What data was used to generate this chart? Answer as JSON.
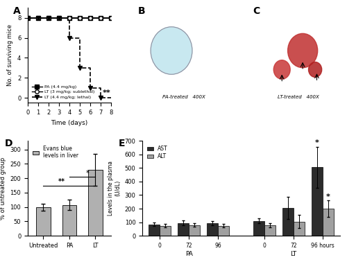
{
  "panel_A": {
    "title": "A",
    "xlabel": "Time (days)",
    "ylabel": "No. of surviving mice",
    "xlim": [
      0,
      8
    ],
    "ylim": [
      -0.5,
      9
    ],
    "yticks": [
      0,
      2,
      4,
      6,
      8
    ],
    "xticks": [
      0,
      1,
      2,
      3,
      4,
      5,
      6,
      7,
      8
    ],
    "pa_x": [
      0,
      1,
      2,
      3,
      4,
      5,
      6,
      7,
      8
    ],
    "pa_y": [
      8,
      8,
      8,
      8,
      8,
      8,
      8,
      8,
      8
    ],
    "lt_sublethal_x": [
      0,
      1,
      2,
      3,
      4,
      5,
      6,
      7,
      8
    ],
    "lt_sublethal_y": [
      8,
      8,
      8,
      8,
      8,
      8,
      8,
      8,
      8
    ],
    "lt_lethal_x": [
      0,
      1,
      2,
      3,
      4,
      4,
      5,
      5,
      6,
      6,
      7,
      7,
      8
    ],
    "lt_lethal_y": [
      8,
      8,
      8,
      8,
      8,
      6,
      6,
      3,
      3,
      1,
      1,
      0,
      0
    ],
    "legend": [
      "PA (4.4 mg/kg)",
      "LT (3 mg/kg; sublethal)",
      "LT (4.4 mg/kg; lethal)"
    ],
    "sig_text": "**",
    "sig_x": 7.6,
    "sig_y": 0.3
  },
  "panel_D": {
    "title": "D",
    "xlabel": "",
    "ylabel": "% of untreated group",
    "categories": [
      "Untreated",
      "PA",
      "LT"
    ],
    "values": [
      100,
      107,
      230
    ],
    "errors": [
      12,
      18,
      55
    ],
    "bar_color": "#b0b0b0",
    "ylim": [
      0,
      330
    ],
    "yticks": [
      0,
      50,
      100,
      150,
      200,
      250,
      300
    ],
    "legend_label": "Evans blue\nlevels in liver",
    "sig1_text": "**",
    "sig2_text": "*"
  },
  "panel_E": {
    "title": "E",
    "xlabel": "",
    "ylabel": "Levels in the plasma\n(U/dL)",
    "groups": [
      "0",
      "72",
      "96",
      "0",
      "72",
      "96 hours"
    ],
    "group_labels": [
      "PA",
      "LT"
    ],
    "ast_values": [
      85,
      95,
      92,
      110,
      205,
      505
    ],
    "alt_values": [
      75,
      80,
      75,
      78,
      105,
      200
    ],
    "ast_errors": [
      15,
      18,
      15,
      18,
      80,
      150
    ],
    "alt_errors": [
      12,
      15,
      12,
      15,
      50,
      60
    ],
    "ast_color": "#2c2c2c",
    "alt_color": "#a0a0a0",
    "ylim": [
      0,
      700
    ],
    "yticks": [
      0,
      100,
      200,
      300,
      400,
      500,
      600,
      700
    ],
    "sig_ast_text": "*",
    "sig_alt_text": "*"
  }
}
